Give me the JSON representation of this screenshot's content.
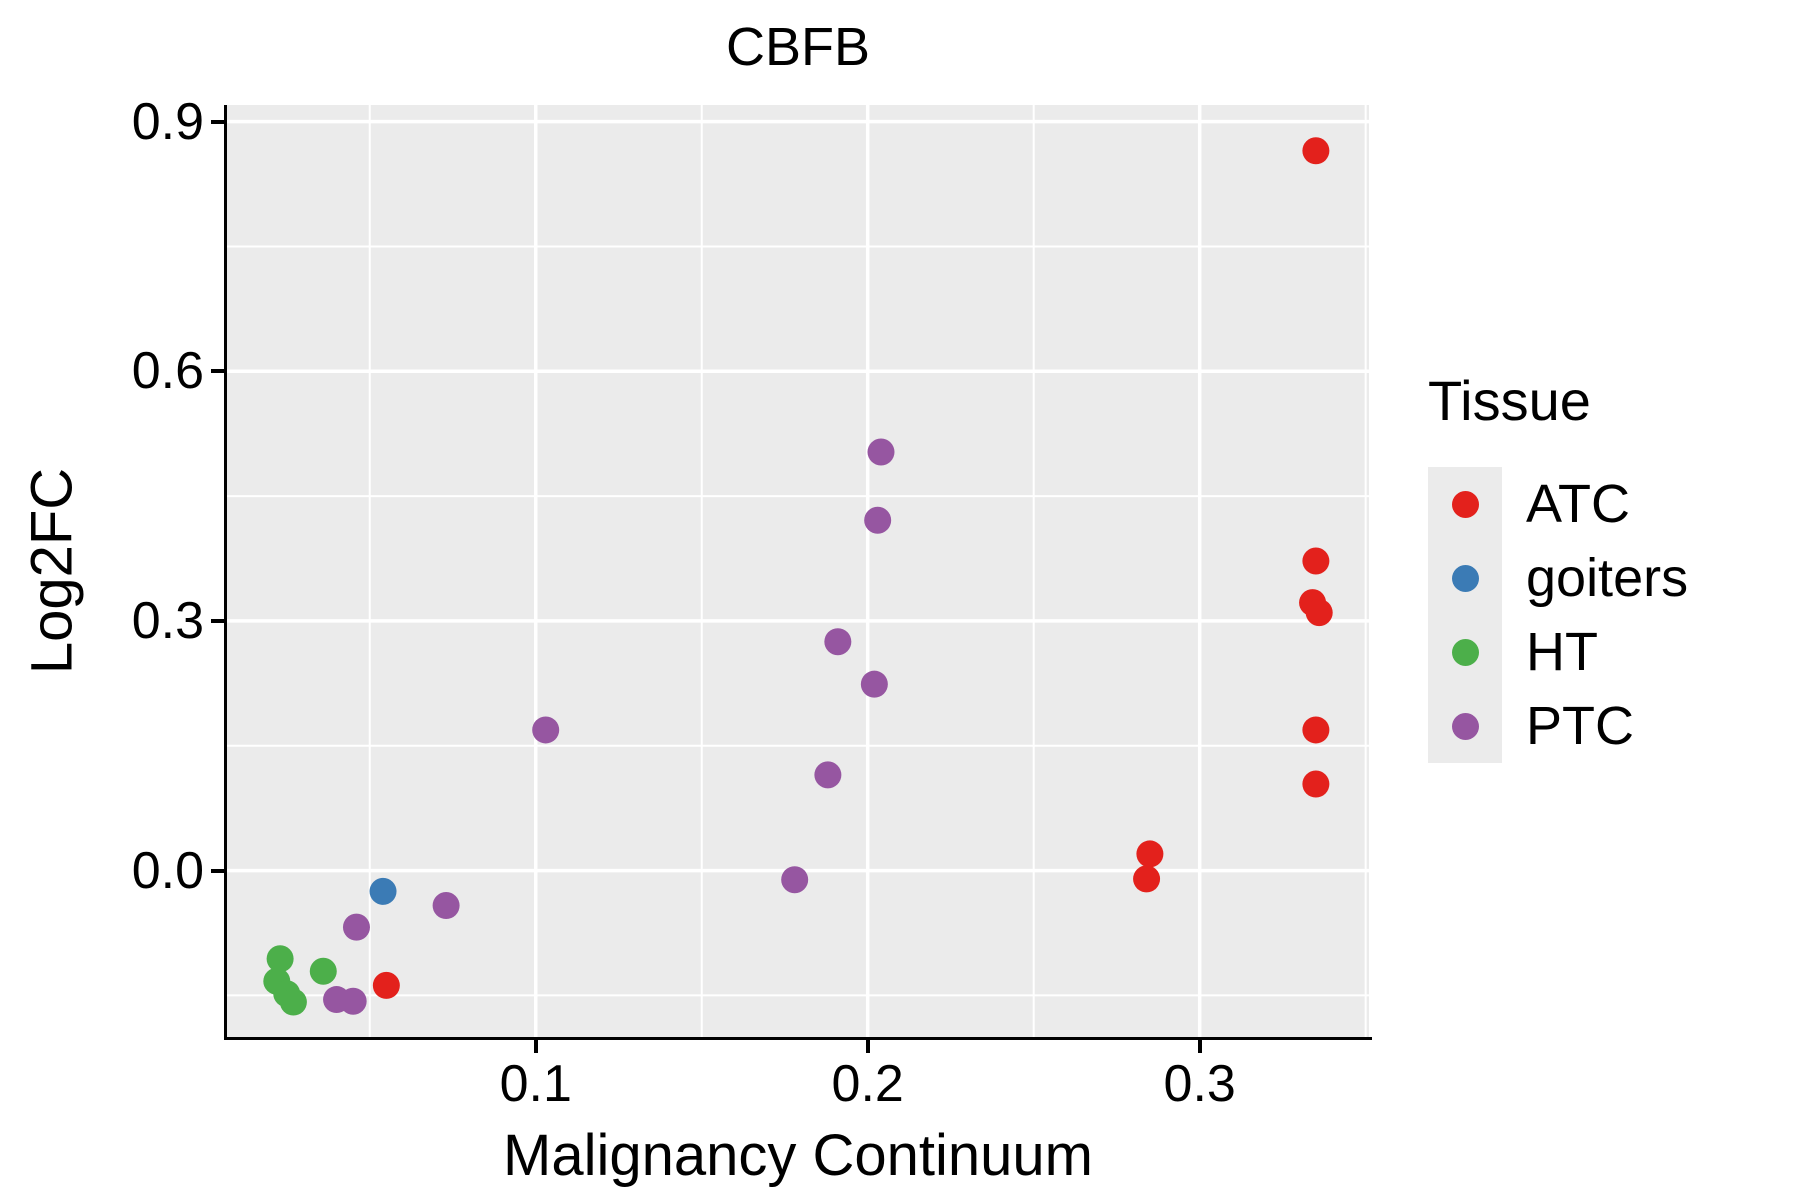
{
  "chart_data": {
    "type": "scatter",
    "title": "CBFB",
    "xlabel": "Malignancy Continuum",
    "ylabel": "Log2FC",
    "xlim": [
      0.007,
      0.351
    ],
    "ylim": [
      -0.2,
      0.92
    ],
    "x_major_ticks": [
      0.1,
      0.2,
      0.3
    ],
    "x_minor_ticks": [
      0.05,
      0.15,
      0.25,
      0.35
    ],
    "y_major_ticks": [
      0.0,
      0.3,
      0.6,
      0.9
    ],
    "y_minor_ticks": [
      -0.15,
      0.15,
      0.45,
      0.75
    ],
    "x_tick_labels": [
      "0.1",
      "0.2",
      "0.3"
    ],
    "y_tick_labels": [
      "0.0",
      "0.3",
      "0.6",
      "0.9"
    ],
    "legend_title": "Tissue",
    "grid": true,
    "legend_position": "right",
    "panel_bg": "#EBEBEB",
    "grid_color": "#FFFFFF",
    "axis_color": "#000000",
    "series": [
      {
        "name": "ATC",
        "color": "#E3211C",
        "points": [
          [
            0.335,
            0.865
          ],
          [
            0.335,
            0.372
          ],
          [
            0.334,
            0.322
          ],
          [
            0.336,
            0.31
          ],
          [
            0.335,
            0.169
          ],
          [
            0.335,
            0.104
          ],
          [
            0.285,
            0.02
          ],
          [
            0.284,
            -0.01
          ],
          [
            0.055,
            -0.138
          ]
        ]
      },
      {
        "name": "goiters",
        "color": "#3B7BB5",
        "points": [
          [
            0.054,
            -0.025
          ]
        ]
      },
      {
        "name": "HT",
        "color": "#4CAF4A",
        "points": [
          [
            0.023,
            -0.106
          ],
          [
            0.022,
            -0.133
          ],
          [
            0.025,
            -0.148
          ],
          [
            0.027,
            -0.158
          ],
          [
            0.036,
            -0.121
          ]
        ]
      },
      {
        "name": "PTC",
        "color": "#9656A1",
        "points": [
          [
            0.046,
            -0.068
          ],
          [
            0.04,
            -0.155
          ],
          [
            0.045,
            -0.157
          ],
          [
            0.073,
            -0.042
          ],
          [
            0.103,
            0.169
          ],
          [
            0.204,
            0.503
          ],
          [
            0.203,
            0.421
          ],
          [
            0.191,
            0.275
          ],
          [
            0.202,
            0.224
          ],
          [
            0.188,
            0.115
          ],
          [
            0.178,
            -0.011
          ]
        ]
      }
    ]
  }
}
